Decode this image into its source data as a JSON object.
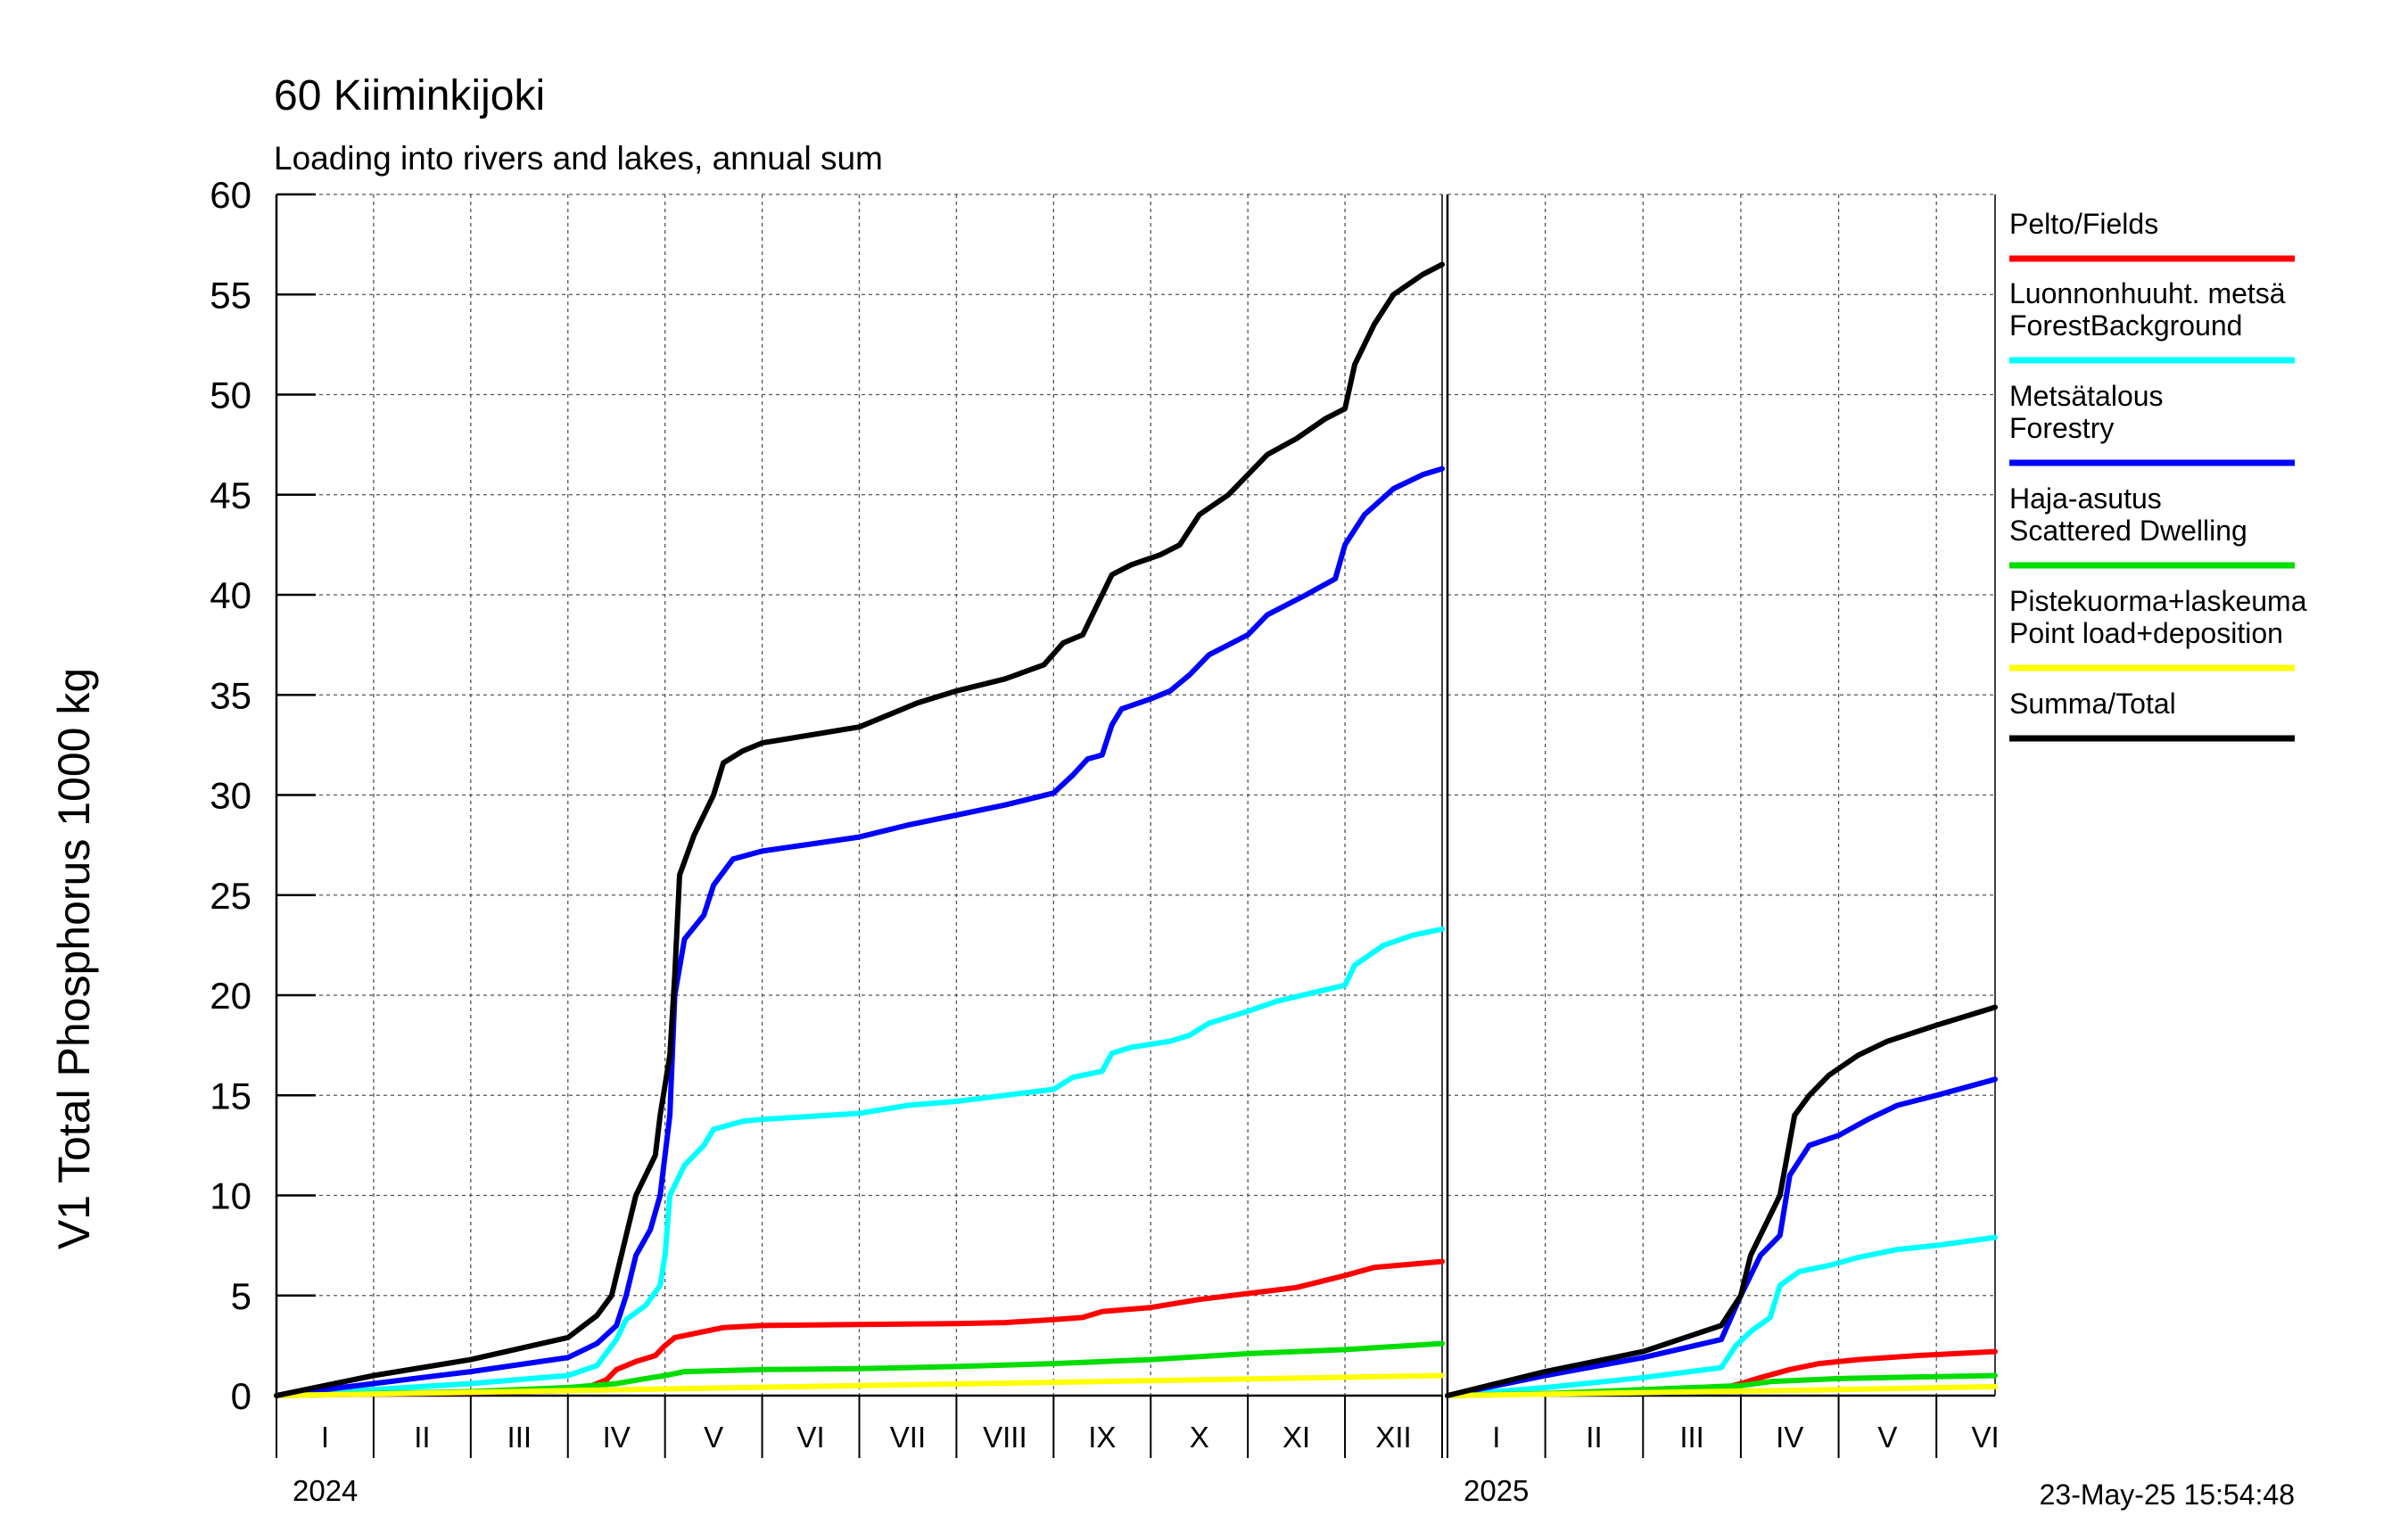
{
  "header": {
    "title": "60 Kiiminkijoki",
    "subtitle": "Loading into rivers and lakes, annual sum"
  },
  "footer": {
    "timestamp": "23-May-25 15:54:48"
  },
  "chart_data": {
    "type": "line",
    "title": "60 Kiiminkijoki",
    "subtitle": "Loading into rivers and lakes, annual sum",
    "ylabel": "V1 Total Phosphorus 1000 kg",
    "xlabel": "",
    "ylim": [
      0,
      60
    ],
    "yticks": [
      0,
      5,
      10,
      15,
      20,
      25,
      30,
      35,
      40,
      45,
      50,
      55,
      60
    ],
    "grid": true,
    "legend_position": "right",
    "x_unit": "month (fractional, cumulative from start of year)",
    "panels": [
      {
        "year": "2024",
        "xlim": [
          0,
          12
        ],
        "months": [
          "I",
          "II",
          "III",
          "IV",
          "V",
          "VI",
          "VII",
          "VIII",
          "IX",
          "X",
          "XI",
          "XII"
        ]
      },
      {
        "year": "2025",
        "xlim": [
          0,
          5.6
        ],
        "months": [
          "I",
          "II",
          "III",
          "IV",
          "V",
          "VI"
        ]
      }
    ],
    "series": [
      {
        "name": "Pelto/Fields",
        "color": "#ff0000",
        "data_2024": [
          [
            0,
            0
          ],
          [
            1,
            0.08
          ],
          [
            2,
            0.15
          ],
          [
            3,
            0.25
          ],
          [
            3.2,
            0.4
          ],
          [
            3.4,
            0.8
          ],
          [
            3.5,
            1.3
          ],
          [
            3.7,
            1.7
          ],
          [
            3.9,
            2.0
          ],
          [
            4.0,
            2.5
          ],
          [
            4.1,
            2.9
          ],
          [
            4.4,
            3.2
          ],
          [
            4.6,
            3.4
          ],
          [
            5,
            3.5
          ],
          [
            6,
            3.55
          ],
          [
            7,
            3.6
          ],
          [
            7.5,
            3.65
          ],
          [
            8,
            3.8
          ],
          [
            8.3,
            3.9
          ],
          [
            8.5,
            4.2
          ],
          [
            9,
            4.4
          ],
          [
            9.5,
            4.8
          ],
          [
            10,
            5.1
          ],
          [
            10.5,
            5.4
          ],
          [
            11,
            6.0
          ],
          [
            11.3,
            6.4
          ],
          [
            12,
            6.7
          ]
        ],
        "data_2025": [
          [
            0,
            0
          ],
          [
            1,
            0.1
          ],
          [
            2,
            0.2
          ],
          [
            2.8,
            0.35
          ],
          [
            3.0,
            0.6
          ],
          [
            3.2,
            0.9
          ],
          [
            3.5,
            1.3
          ],
          [
            3.8,
            1.6
          ],
          [
            4.2,
            1.8
          ],
          [
            4.8,
            2.0
          ],
          [
            5.6,
            2.2
          ]
        ]
      },
      {
        "name": "Luonnonhuuht. metsä ForestBackground",
        "color": "#00ffff",
        "data_2024": [
          [
            0,
            0
          ],
          [
            1,
            0.3
          ],
          [
            2,
            0.6
          ],
          [
            3,
            1.0
          ],
          [
            3.3,
            1.5
          ],
          [
            3.5,
            2.8
          ],
          [
            3.6,
            3.8
          ],
          [
            3.8,
            4.5
          ],
          [
            3.95,
            5.5
          ],
          [
            4.0,
            7.0
          ],
          [
            4.05,
            10.0
          ],
          [
            4.2,
            11.5
          ],
          [
            4.4,
            12.5
          ],
          [
            4.5,
            13.3
          ],
          [
            4.8,
            13.7
          ],
          [
            5,
            13.8
          ],
          [
            6,
            14.1
          ],
          [
            6.5,
            14.5
          ],
          [
            7,
            14.7
          ],
          [
            7.5,
            15.0
          ],
          [
            8,
            15.3
          ],
          [
            8.2,
            15.9
          ],
          [
            8.5,
            16.2
          ],
          [
            8.6,
            17.1
          ],
          [
            8.8,
            17.4
          ],
          [
            9.2,
            17.7
          ],
          [
            9.4,
            18.0
          ],
          [
            9.6,
            18.6
          ],
          [
            10,
            19.2
          ],
          [
            10.3,
            19.7
          ],
          [
            11,
            20.5
          ],
          [
            11.1,
            21.5
          ],
          [
            11.4,
            22.5
          ],
          [
            11.7,
            23.0
          ],
          [
            12,
            23.3
          ]
        ],
        "data_2025": [
          [
            0,
            0
          ],
          [
            1,
            0.4
          ],
          [
            2,
            0.9
          ],
          [
            2.8,
            1.4
          ],
          [
            2.95,
            2.5
          ],
          [
            3.1,
            3.2
          ],
          [
            3.3,
            3.9
          ],
          [
            3.4,
            5.5
          ],
          [
            3.6,
            6.2
          ],
          [
            3.9,
            6.5
          ],
          [
            4.2,
            6.9
          ],
          [
            4.6,
            7.3
          ],
          [
            5,
            7.5
          ],
          [
            5.6,
            7.9
          ]
        ]
      },
      {
        "name": "Metsätalous Forestry",
        "color": "#0000ff",
        "data_2024": [
          [
            0,
            0
          ],
          [
            1,
            0.6
          ],
          [
            2,
            1.2
          ],
          [
            3,
            1.9
          ],
          [
            3.3,
            2.6
          ],
          [
            3.5,
            3.5
          ],
          [
            3.6,
            5.0
          ],
          [
            3.7,
            7.0
          ],
          [
            3.85,
            8.3
          ],
          [
            3.95,
            10.0
          ],
          [
            4.05,
            14.0
          ],
          [
            4.1,
            20.0
          ],
          [
            4.2,
            22.8
          ],
          [
            4.4,
            24.0
          ],
          [
            4.5,
            25.5
          ],
          [
            4.7,
            26.8
          ],
          [
            5,
            27.2
          ],
          [
            6,
            27.9
          ],
          [
            6.5,
            28.5
          ],
          [
            7,
            29.0
          ],
          [
            7.5,
            29.5
          ],
          [
            8,
            30.1
          ],
          [
            8.2,
            31.0
          ],
          [
            8.35,
            31.8
          ],
          [
            8.5,
            32.0
          ],
          [
            8.6,
            33.5
          ],
          [
            8.7,
            34.3
          ],
          [
            9,
            34.8
          ],
          [
            9.2,
            35.2
          ],
          [
            9.4,
            36.0
          ],
          [
            9.6,
            37.0
          ],
          [
            10,
            38.0
          ],
          [
            10.2,
            39.0
          ],
          [
            10.6,
            40.0
          ],
          [
            10.9,
            40.8
          ],
          [
            11.0,
            42.5
          ],
          [
            11.2,
            44.0
          ],
          [
            11.5,
            45.3
          ],
          [
            11.8,
            46.0
          ],
          [
            12,
            46.3
          ]
        ],
        "data_2025": [
          [
            0,
            0
          ],
          [
            1,
            1.0
          ],
          [
            2,
            1.9
          ],
          [
            2.8,
            2.8
          ],
          [
            3.0,
            5.0
          ],
          [
            3.2,
            7.0
          ],
          [
            3.4,
            8.0
          ],
          [
            3.5,
            11.0
          ],
          [
            3.7,
            12.5
          ],
          [
            4,
            13.0
          ],
          [
            4.3,
            13.8
          ],
          [
            4.6,
            14.5
          ],
          [
            5,
            15.0
          ],
          [
            5.6,
            15.8
          ]
        ]
      },
      {
        "name": "Haja-asutus Scattered Dwelling",
        "color": "#00dd00",
        "data_2024": [
          [
            0,
            0
          ],
          [
            2,
            0.2
          ],
          [
            3,
            0.4
          ],
          [
            3.5,
            0.6
          ],
          [
            3.8,
            0.85
          ],
          [
            4.0,
            1.0
          ],
          [
            4.2,
            1.2
          ],
          [
            5,
            1.3
          ],
          [
            6,
            1.35
          ],
          [
            7,
            1.45
          ],
          [
            8,
            1.6
          ],
          [
            9,
            1.8
          ],
          [
            10,
            2.1
          ],
          [
            11,
            2.3
          ],
          [
            12,
            2.6
          ]
        ],
        "data_2025": [
          [
            0,
            0
          ],
          [
            1,
            0.1
          ],
          [
            2,
            0.3
          ],
          [
            3.0,
            0.5
          ],
          [
            3.3,
            0.7
          ],
          [
            4,
            0.85
          ],
          [
            5,
            0.95
          ],
          [
            5.6,
            1.0
          ]
        ]
      },
      {
        "name": "Pistekuorma+laskeuma Point load+deposition",
        "color": "#ffff00",
        "data_2024": [
          [
            0,
            0
          ],
          [
            3,
            0.25
          ],
          [
            6,
            0.5
          ],
          [
            9,
            0.75
          ],
          [
            12,
            1.0
          ]
        ],
        "data_2025": [
          [
            0,
            0
          ],
          [
            2,
            0.15
          ],
          [
            4,
            0.3
          ],
          [
            5.6,
            0.45
          ]
        ]
      },
      {
        "name": "Summa/Total",
        "color": "#000000",
        "data_2024": [
          [
            0,
            0
          ],
          [
            1,
            1.0
          ],
          [
            2,
            1.8
          ],
          [
            3,
            2.9
          ],
          [
            3.3,
            4.0
          ],
          [
            3.45,
            5.0
          ],
          [
            3.6,
            8.0
          ],
          [
            3.7,
            10.0
          ],
          [
            3.9,
            12.0
          ],
          [
            3.95,
            14.0
          ],
          [
            4.05,
            17.0
          ],
          [
            4.1,
            21.0
          ],
          [
            4.15,
            26.0
          ],
          [
            4.3,
            28.0
          ],
          [
            4.5,
            30.0
          ],
          [
            4.6,
            31.6
          ],
          [
            4.8,
            32.2
          ],
          [
            5,
            32.6
          ],
          [
            6,
            33.4
          ],
          [
            6.3,
            34.0
          ],
          [
            6.6,
            34.6
          ],
          [
            7,
            35.2
          ],
          [
            7.5,
            35.8
          ],
          [
            7.9,
            36.5
          ],
          [
            8.1,
            37.6
          ],
          [
            8.3,
            38.0
          ],
          [
            8.4,
            39.0
          ],
          [
            8.6,
            41.0
          ],
          [
            8.8,
            41.5
          ],
          [
            9.1,
            42.0
          ],
          [
            9.3,
            42.5
          ],
          [
            9.5,
            44.0
          ],
          [
            9.8,
            45.0
          ],
          [
            10,
            46.0
          ],
          [
            10.2,
            47.0
          ],
          [
            10.5,
            47.8
          ],
          [
            10.8,
            48.8
          ],
          [
            11.0,
            49.3
          ],
          [
            11.1,
            51.5
          ],
          [
            11.3,
            53.5
          ],
          [
            11.5,
            55.0
          ],
          [
            11.8,
            56.0
          ],
          [
            12,
            56.5
          ]
        ],
        "data_2025": [
          [
            0,
            0
          ],
          [
            1,
            1.2
          ],
          [
            2,
            2.2
          ],
          [
            2.8,
            3.5
          ],
          [
            3.0,
            5.0
          ],
          [
            3.1,
            7.0
          ],
          [
            3.3,
            9.0
          ],
          [
            3.4,
            10.0
          ],
          [
            3.55,
            14.0
          ],
          [
            3.7,
            15.0
          ],
          [
            3.9,
            16.0
          ],
          [
            4.2,
            17.0
          ],
          [
            4.5,
            17.7
          ],
          [
            5,
            18.5
          ],
          [
            5.6,
            19.4
          ]
        ]
      }
    ]
  }
}
